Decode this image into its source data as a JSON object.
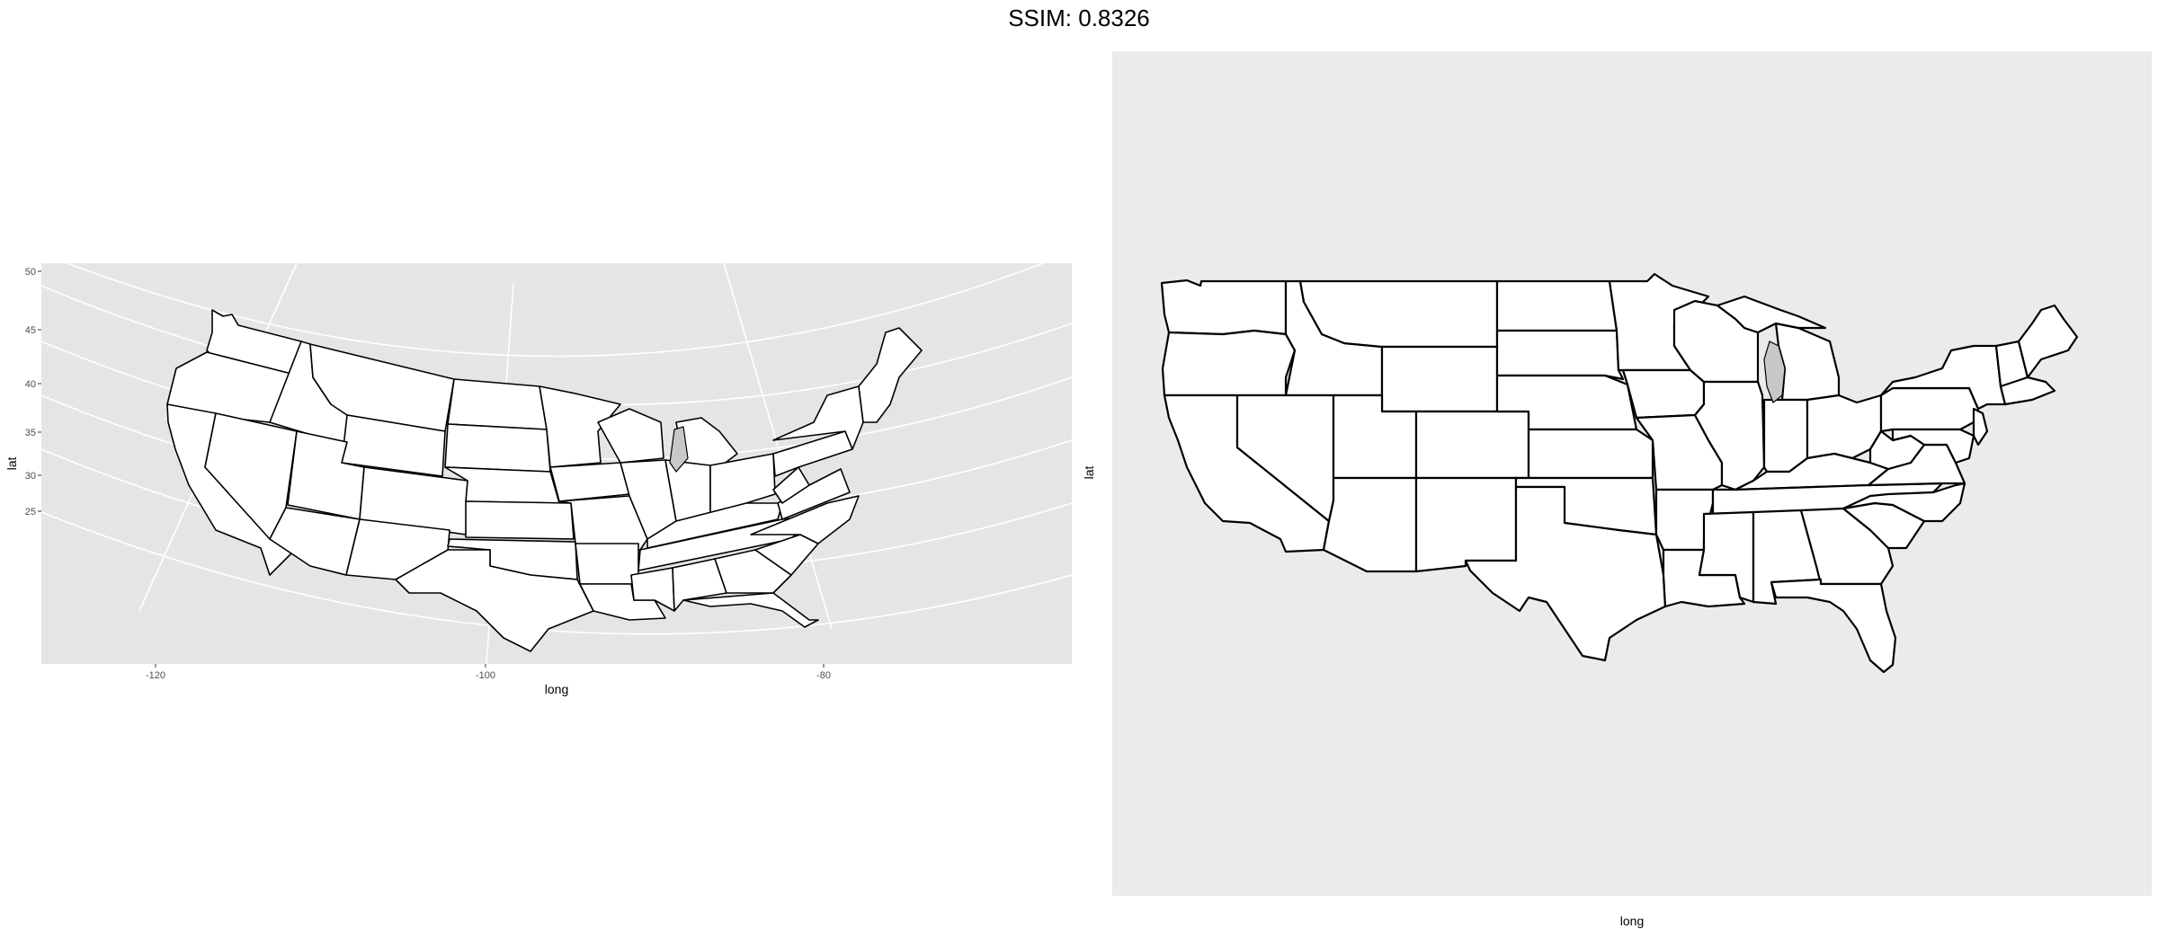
{
  "title": "SSIM: 0.8326",
  "panels": [
    {
      "id": "left",
      "background": "#e5e5e5",
      "xlabel": "long",
      "ylabel": "lat",
      "x_ticks": [
        "-120",
        "-100",
        "-80"
      ],
      "y_ticks": [
        "50",
        "45",
        "40",
        "35",
        "30",
        "25"
      ],
      "projection": "conic",
      "fill": "#ffffff",
      "stroke": "#000000"
    },
    {
      "id": "right",
      "background": "#ebebeb",
      "xlabel": "long",
      "ylabel": "lat",
      "projection": "equirectangular",
      "fill": "#ffffff",
      "stroke": "#000000"
    }
  ]
}
